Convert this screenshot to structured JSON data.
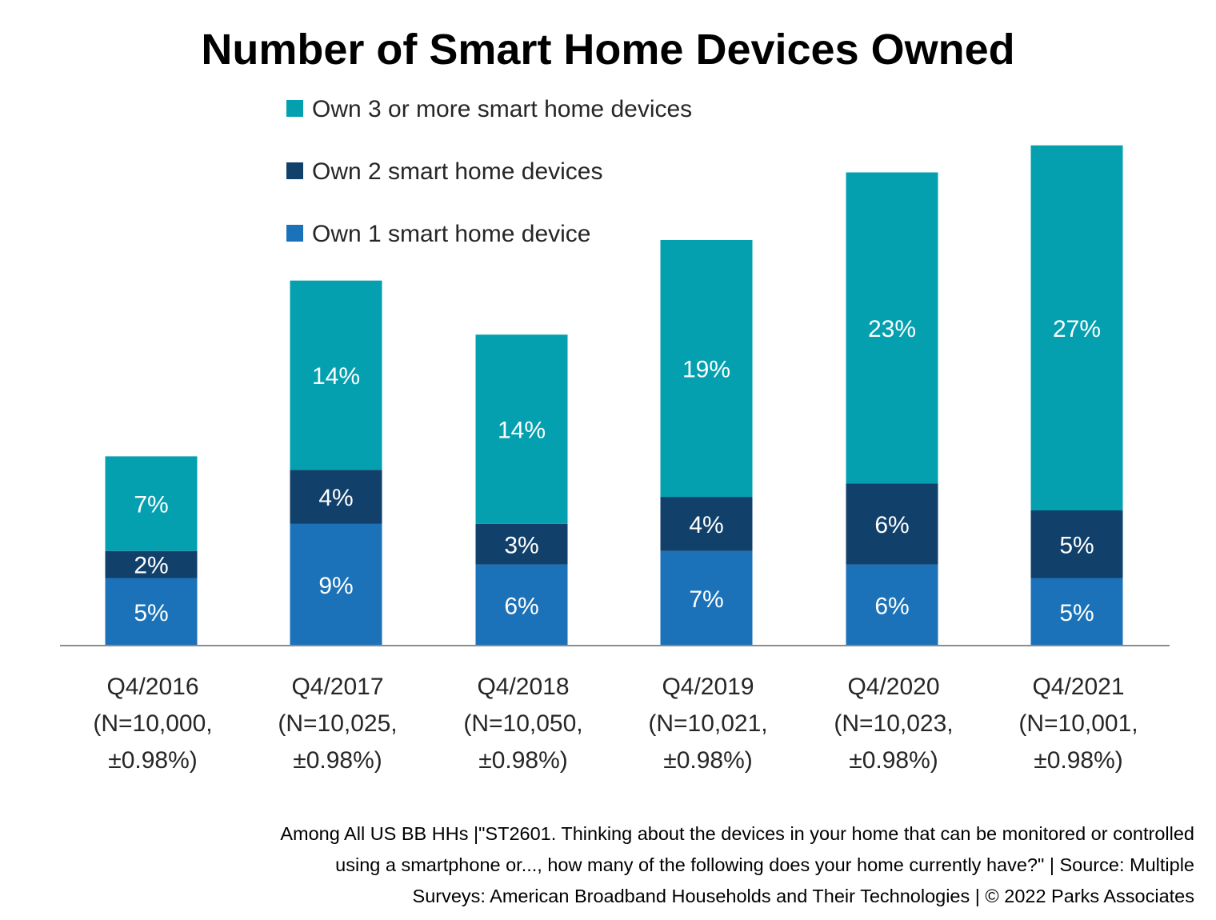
{
  "chart_data": {
    "type": "bar",
    "stacked": true,
    "title": "Number of Smart Home Devices Owned",
    "xlabel": "",
    "ylabel": "",
    "categories": [
      [
        "Q4/2016",
        "(N=10,000,",
        "±0.98%)"
      ],
      [
        "Q4/2017",
        "(N=10,025,",
        "±0.98%)"
      ],
      [
        "Q4/2018",
        "(N=10,050,",
        "±0.98%)"
      ],
      [
        "Q4/2019",
        "(N=10,021,",
        "±0.98%)"
      ],
      [
        "Q4/2020",
        "(N=10,023,",
        "±0.98%)"
      ],
      [
        "Q4/2021",
        "(N=10,001,",
        "±0.98%)"
      ]
    ],
    "series": [
      {
        "name": "Own 1 smart home device",
        "color": "#1B72B8",
        "values": [
          5,
          9,
          6,
          7,
          6,
          5
        ]
      },
      {
        "name": "Own 2 smart home devices",
        "color": "#11406B",
        "values": [
          2,
          4,
          3,
          4,
          6,
          5
        ]
      },
      {
        "name": "Own 3 or more smart home devices",
        "color": "#04A0B0",
        "values": [
          7,
          14,
          14,
          19,
          23,
          27
        ]
      }
    ],
    "value_suffix": "%",
    "legend_order": [
      2,
      1,
      0
    ],
    "legend_position": "top-left",
    "grid": false,
    "ylim": [
      0,
      38
    ]
  },
  "footnote": [
    "Among All US BB HHs |\"ST2601. Thinking about the devices in your home that can be monitored or controlled",
    "using a smartphone or..., how many of the following does your home currently have?\" | Source: Multiple",
    "Surveys: American Broadband Households and Their Technologies  |  © 2022 Parks Associates"
  ]
}
